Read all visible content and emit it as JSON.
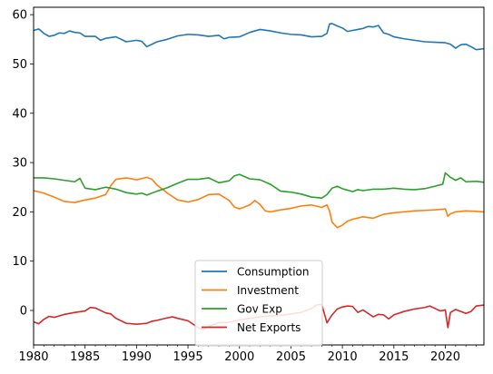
{
  "chart_data": {
    "type": "line",
    "title": "",
    "xlabel": "",
    "ylabel": "",
    "xlim": [
      1980,
      2023.75
    ],
    "ylim": [
      -7,
      61.5
    ],
    "grid": false,
    "legend_position": "lower center",
    "x_ticks": [
      1980,
      1985,
      1990,
      1995,
      2000,
      2005,
      2010,
      2015,
      2020
    ],
    "y_ticks": [
      0,
      10,
      20,
      30,
      40,
      50,
      60
    ],
    "series": [
      {
        "name": "Consumption",
        "color": "#1f77b4",
        "points": [
          [
            1980,
            56.8
          ],
          [
            1980.5,
            57.1
          ],
          [
            1981,
            56.2
          ],
          [
            1981.5,
            55.6
          ],
          [
            1982,
            55.8
          ],
          [
            1982.5,
            56.3
          ],
          [
            1983,
            56.2
          ],
          [
            1983.5,
            56.7
          ],
          [
            1984,
            56.4
          ],
          [
            1984.5,
            56.3
          ],
          [
            1985,
            55.6
          ],
          [
            1986,
            55.6
          ],
          [
            1986.5,
            54.8
          ],
          [
            1987,
            55.2
          ],
          [
            1988,
            55.5
          ],
          [
            1989,
            54.5
          ],
          [
            1990,
            54.8
          ],
          [
            1990.5,
            54.6
          ],
          [
            1991,
            53.5
          ],
          [
            1991.5,
            54.0
          ],
          [
            1992,
            54.5
          ],
          [
            1993,
            55.0
          ],
          [
            1994,
            55.7
          ],
          [
            1995,
            56.0
          ],
          [
            1996,
            55.9
          ],
          [
            1997,
            55.6
          ],
          [
            1998,
            55.8
          ],
          [
            1998.5,
            55.1
          ],
          [
            1999,
            55.4
          ],
          [
            2000,
            55.5
          ],
          [
            2001,
            56.4
          ],
          [
            2002,
            57.0
          ],
          [
            2003,
            56.7
          ],
          [
            2004,
            56.3
          ],
          [
            2005,
            56.0
          ],
          [
            2006,
            55.9
          ],
          [
            2007,
            55.5
          ],
          [
            2008,
            55.6
          ],
          [
            2008.5,
            56.2
          ],
          [
            2008.75,
            58.1
          ],
          [
            2009,
            58.2
          ],
          [
            2009.5,
            57.7
          ],
          [
            2010,
            57.3
          ],
          [
            2010.5,
            56.6
          ],
          [
            2011,
            56.8
          ],
          [
            2011.5,
            57.0
          ],
          [
            2012,
            57.2
          ],
          [
            2012.5,
            57.6
          ],
          [
            2013,
            57.5
          ],
          [
            2013.5,
            57.8
          ],
          [
            2014,
            56.3
          ],
          [
            2014.5,
            56.0
          ],
          [
            2015,
            55.5
          ],
          [
            2016,
            55.1
          ],
          [
            2017,
            54.8
          ],
          [
            2018,
            54.5
          ],
          [
            2019,
            54.4
          ],
          [
            2020,
            54.3
          ],
          [
            2020.5,
            54.0
          ],
          [
            2021,
            53.2
          ],
          [
            2021.5,
            53.9
          ],
          [
            2022,
            54.0
          ],
          [
            2022.5,
            53.5
          ],
          [
            2023,
            52.9
          ],
          [
            2023.75,
            53.1
          ]
        ]
      },
      {
        "name": "Investment",
        "color": "#ff7f0e",
        "points": [
          [
            1980,
            24.3
          ],
          [
            1981,
            23.8
          ],
          [
            1982,
            23.0
          ],
          [
            1983,
            22.1
          ],
          [
            1984,
            21.9
          ],
          [
            1985,
            22.4
          ],
          [
            1986,
            22.8
          ],
          [
            1987,
            23.5
          ],
          [
            1987.5,
            25.3
          ],
          [
            1988,
            26.6
          ],
          [
            1989,
            26.9
          ],
          [
            1990,
            26.5
          ],
          [
            1991,
            27.0
          ],
          [
            1991.5,
            26.6
          ],
          [
            1992,
            25.4
          ],
          [
            1993,
            23.8
          ],
          [
            1994,
            22.4
          ],
          [
            1995,
            22.0
          ],
          [
            1996,
            22.5
          ],
          [
            1997,
            23.5
          ],
          [
            1998,
            23.6
          ],
          [
            1999,
            22.3
          ],
          [
            1999.5,
            21.0
          ],
          [
            2000,
            20.6
          ],
          [
            2001,
            21.4
          ],
          [
            2001.5,
            22.3
          ],
          [
            2002,
            21.5
          ],
          [
            2002.5,
            20.2
          ],
          [
            2003,
            20.0
          ],
          [
            2004,
            20.4
          ],
          [
            2005,
            20.7
          ],
          [
            2006,
            21.2
          ],
          [
            2007,
            21.4
          ],
          [
            2008,
            20.9
          ],
          [
            2008.5,
            21.4
          ],
          [
            2008.75,
            20.2
          ],
          [
            2009,
            17.9
          ],
          [
            2009.5,
            16.8
          ],
          [
            2010,
            17.3
          ],
          [
            2010.5,
            18.1
          ],
          [
            2011,
            18.5
          ],
          [
            2012,
            19.0
          ],
          [
            2013,
            18.7
          ],
          [
            2014,
            19.5
          ],
          [
            2015,
            19.8
          ],
          [
            2016,
            20.0
          ],
          [
            2017,
            20.2
          ],
          [
            2018,
            20.3
          ],
          [
            2019,
            20.4
          ],
          [
            2020,
            20.6
          ],
          [
            2020.25,
            19.1
          ],
          [
            2020.5,
            19.6
          ],
          [
            2021,
            20.0
          ],
          [
            2022,
            20.2
          ],
          [
            2023,
            20.1
          ],
          [
            2023.75,
            20.0
          ]
        ]
      },
      {
        "name": "Gov Exp",
        "color": "#2ca02c",
        "points": [
          [
            1980,
            26.9
          ],
          [
            1981,
            26.9
          ],
          [
            1982,
            26.7
          ],
          [
            1983,
            26.4
          ],
          [
            1984,
            26.1
          ],
          [
            1984.5,
            26.8
          ],
          [
            1985,
            24.8
          ],
          [
            1986,
            24.5
          ],
          [
            1987,
            25.0
          ],
          [
            1988,
            24.6
          ],
          [
            1989,
            23.9
          ],
          [
            1990,
            23.6
          ],
          [
            1990.5,
            23.8
          ],
          [
            1991,
            23.4
          ],
          [
            1992,
            24.2
          ],
          [
            1993,
            24.9
          ],
          [
            1994,
            25.8
          ],
          [
            1995,
            26.6
          ],
          [
            1996,
            26.6
          ],
          [
            1997,
            26.9
          ],
          [
            1998,
            25.9
          ],
          [
            1999,
            26.3
          ],
          [
            1999.5,
            27.3
          ],
          [
            2000,
            27.6
          ],
          [
            2001,
            26.7
          ],
          [
            2002,
            26.5
          ],
          [
            2003,
            25.6
          ],
          [
            2004,
            24.2
          ],
          [
            2005,
            24.0
          ],
          [
            2006,
            23.6
          ],
          [
            2007,
            23.0
          ],
          [
            2008,
            22.8
          ],
          [
            2008.5,
            23.5
          ],
          [
            2009,
            24.8
          ],
          [
            2009.5,
            25.2
          ],
          [
            2010,
            24.7
          ],
          [
            2011,
            24.1
          ],
          [
            2011.5,
            24.5
          ],
          [
            2012,
            24.3
          ],
          [
            2013,
            24.6
          ],
          [
            2014,
            24.6
          ],
          [
            2015,
            24.8
          ],
          [
            2016,
            24.6
          ],
          [
            2017,
            24.5
          ],
          [
            2018,
            24.7
          ],
          [
            2019,
            25.2
          ],
          [
            2019.75,
            25.6
          ],
          [
            2020,
            27.9
          ],
          [
            2020.5,
            27.0
          ],
          [
            2021,
            26.4
          ],
          [
            2021.5,
            26.9
          ],
          [
            2022,
            26.1
          ],
          [
            2023,
            26.2
          ],
          [
            2023.75,
            26.0
          ]
        ]
      },
      {
        "name": "Net Exports",
        "color": "#d62728",
        "points": [
          [
            1980,
            -2.3
          ],
          [
            1980.5,
            -2.7
          ],
          [
            1981,
            -1.8
          ],
          [
            1981.5,
            -1.2
          ],
          [
            1982,
            -1.4
          ],
          [
            1982.5,
            -1.1
          ],
          [
            1983,
            -0.8
          ],
          [
            1984,
            -0.4
          ],
          [
            1985,
            -0.1
          ],
          [
            1985.5,
            0.6
          ],
          [
            1986,
            0.5
          ],
          [
            1987,
            -0.5
          ],
          [
            1987.5,
            -0.7
          ],
          [
            1988,
            -1.6
          ],
          [
            1989,
            -2.6
          ],
          [
            1990,
            -2.8
          ],
          [
            1991,
            -2.6
          ],
          [
            1991.5,
            -2.2
          ],
          [
            1992,
            -2.0
          ],
          [
            1993,
            -1.5
          ],
          [
            1993.5,
            -1.3
          ],
          [
            1994,
            -1.6
          ],
          [
            1995,
            -2.1
          ],
          [
            1996,
            -3.5
          ],
          [
            1996.5,
            -3.9
          ],
          [
            1997,
            -3.2
          ],
          [
            1998,
            -2.5
          ],
          [
            1999,
            -2.4
          ],
          [
            2000,
            -1.9
          ],
          [
            2001,
            -1.6
          ],
          [
            2002,
            -1.3
          ],
          [
            2003,
            -1.1
          ],
          [
            2004,
            -1.0
          ],
          [
            2005,
            -0.7
          ],
          [
            2006,
            -0.4
          ],
          [
            2007,
            0.4
          ],
          [
            2007.5,
            1.1
          ],
          [
            2008,
            1.2
          ],
          [
            2008.5,
            -2.5
          ],
          [
            2009,
            -0.9
          ],
          [
            2009.5,
            0.3
          ],
          [
            2010,
            0.7
          ],
          [
            2010.5,
            0.9
          ],
          [
            2011,
            0.8
          ],
          [
            2011.5,
            -0.4
          ],
          [
            2012,
            0.1
          ],
          [
            2012.5,
            -0.6
          ],
          [
            2013,
            -1.3
          ],
          [
            2013.5,
            -0.8
          ],
          [
            2014,
            -0.9
          ],
          [
            2014.5,
            -1.7
          ],
          [
            2015,
            -0.9
          ],
          [
            2016,
            -0.2
          ],
          [
            2017,
            0.3
          ],
          [
            2018,
            0.6
          ],
          [
            2018.5,
            0.9
          ],
          [
            2019,
            0.4
          ],
          [
            2019.5,
            -0.1
          ],
          [
            2020,
            0.1
          ],
          [
            2020.25,
            -3.5
          ],
          [
            2020.5,
            -0.4
          ],
          [
            2021,
            0.2
          ],
          [
            2021.5,
            -0.2
          ],
          [
            2022,
            -0.6
          ],
          [
            2022.5,
            -0.2
          ],
          [
            2023,
            0.9
          ],
          [
            2023.75,
            1.1
          ]
        ]
      }
    ]
  }
}
